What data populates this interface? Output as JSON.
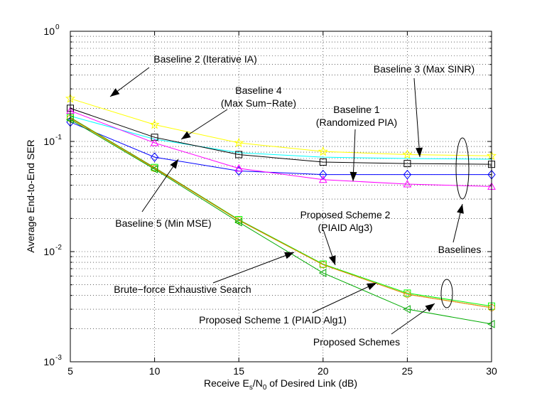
{
  "chart_data": {
    "type": "line",
    "title": "",
    "xlabel_parts": {
      "prefix": "Receive E",
      "sub1": "s",
      "mid": "/N",
      "sub2": "0",
      "suffix": " of Desired Link (dB)"
    },
    "ylabel": "Average End-to-End SER",
    "y_scale": "log",
    "xlim": [
      5,
      30
    ],
    "ylim": [
      0.001,
      1
    ],
    "grid": true,
    "x": [
      5,
      10,
      15,
      20,
      25,
      30
    ],
    "x_tick_labels": [
      "5",
      "10",
      "15",
      "20",
      "25",
      "30"
    ],
    "y_ticks": [
      {
        "value": 0.001,
        "base": "10",
        "exp": "-3"
      },
      {
        "value": 0.01,
        "base": "10",
        "exp": "-2"
      },
      {
        "value": 0.1,
        "base": "10",
        "exp": "-1"
      },
      {
        "value": 1,
        "base": "10",
        "exp": "0"
      }
    ],
    "series": [
      {
        "color": "#ffff00",
        "marker": "star",
        "values": [
          0.245,
          0.142,
          0.097,
          0.081,
          0.076,
          0.074
        ]
      },
      {
        "color": "#00ffff",
        "marker": "none",
        "values": [
          0.17,
          0.105,
          0.079,
          0.072,
          0.07,
          0.069
        ]
      },
      {
        "color": "#000000",
        "marker": "square",
        "values": [
          0.2,
          0.109,
          0.076,
          0.065,
          0.063,
          0.062
        ]
      },
      {
        "color": "#0000ff",
        "marker": "diamond",
        "values": [
          0.15,
          0.072,
          0.054,
          0.05,
          0.05,
          0.05
        ]
      },
      {
        "color": "#ff00ff",
        "marker": "triangle-up",
        "values": [
          0.19,
          0.097,
          0.057,
          0.045,
          0.041,
          0.039
        ]
      },
      {
        "color": "#00ff00",
        "marker": "square",
        "values": [
          0.165,
          0.058,
          0.0195,
          0.0077,
          0.0042,
          0.0032
        ]
      },
      {
        "color": "#ff0000",
        "marker": "none",
        "values": [
          0.163,
          0.0575,
          0.0193,
          0.0076,
          0.0041,
          0.0031
        ]
      },
      {
        "color": "#d4a000",
        "marker": "circle",
        "values": [
          0.162,
          0.057,
          0.0192,
          0.0076,
          0.0041,
          0.0031
        ]
      },
      {
        "color": "#00aa00",
        "marker": "triangle-left",
        "values": [
          0.158,
          0.056,
          0.0185,
          0.0064,
          0.003,
          0.0022
        ]
      }
    ],
    "annotations": [
      {
        "id": "baseline2",
        "lines": [
          "Baseline 2 (Iterative IA)"
        ]
      },
      {
        "id": "baseline3",
        "lines": [
          "Baseline 3 (Max SINR)"
        ]
      },
      {
        "id": "baseline4",
        "lines": [
          "Baseline 4",
          "(Max Sum−Rate)"
        ]
      },
      {
        "id": "baseline1",
        "lines": [
          "Baseline 1",
          "(Randomized PIA)"
        ]
      },
      {
        "id": "baseline5",
        "lines": [
          "Baseline 5  (Min MSE)"
        ]
      },
      {
        "id": "proposed2",
        "lines": [
          "Proposed Scheme 2",
          "(PIAID Alg3)"
        ]
      },
      {
        "id": "baselines",
        "lines": [
          "Baselines"
        ]
      },
      {
        "id": "bruteforce",
        "lines": [
          "Brute−force Exhaustive Search"
        ]
      },
      {
        "id": "proposed1",
        "lines": [
          "Proposed Scheme 1 (PIAID Alg1)"
        ]
      },
      {
        "id": "proposedschemes",
        "lines": [
          "Proposed Schemes"
        ]
      }
    ]
  }
}
